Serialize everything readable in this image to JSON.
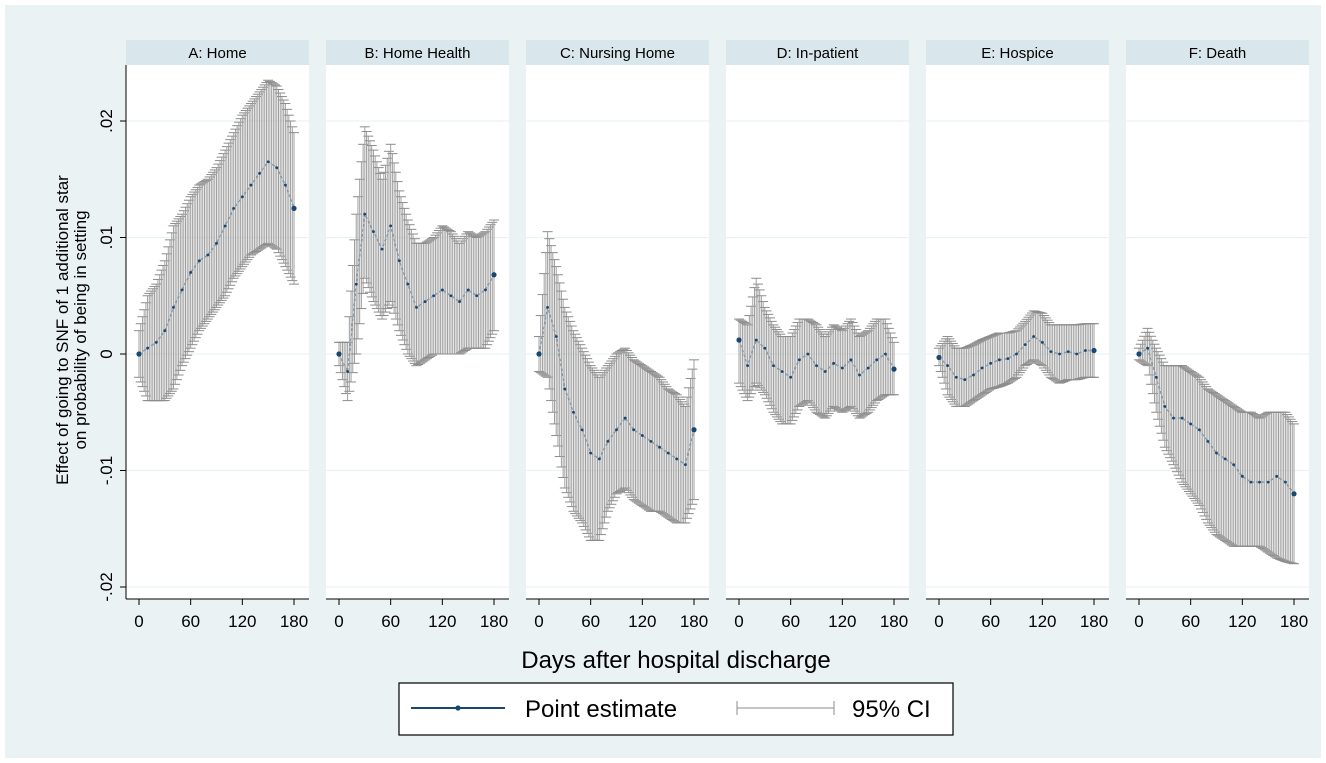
{
  "chart_data": {
    "type": "line",
    "ylabel_line1": "Effect of going to SNF of 1 additional star",
    "ylabel_line2": "on probability of being in setting",
    "xlabel": "Days after hospital discharge",
    "xlim": [
      0,
      180
    ],
    "ylim": [
      -0.02,
      0.02
    ],
    "xticks": [
      0,
      60,
      120,
      180
    ],
    "xtick_labels": [
      "0",
      "60",
      "120",
      "180"
    ],
    "yticks": [
      -0.02,
      -0.01,
      0,
      0.01,
      0.02
    ],
    "ytick_labels": [
      "-.02",
      "-.01",
      "0",
      ".01",
      ".02"
    ],
    "grid": true,
    "legend_position": "bottom",
    "legend": {
      "point": "Point estimate",
      "ci": "95% CI"
    },
    "colors": {
      "point": "#1a476f",
      "ci": "#8c8c8c",
      "band": "#a0a0a0",
      "panel_bg": "#eaf2f3",
      "strip_bg": "#d9e6eb",
      "outer_bg": "#eaf2f3"
    },
    "panels": [
      {
        "title": "A: Home",
        "x": [
          0,
          10,
          20,
          30,
          40,
          50,
          60,
          70,
          80,
          90,
          100,
          110,
          120,
          130,
          140,
          150,
          160,
          170,
          180
        ],
        "estimate": [
          0.0,
          0.0005,
          0.001,
          0.002,
          0.004,
          0.0055,
          0.007,
          0.008,
          0.0085,
          0.0095,
          0.011,
          0.0125,
          0.0135,
          0.0145,
          0.0155,
          0.0165,
          0.016,
          0.0145,
          0.0125
        ],
        "lower": [
          -0.002,
          -0.004,
          -0.004,
          -0.004,
          -0.003,
          -0.001,
          0.0005,
          0.002,
          0.003,
          0.004,
          0.005,
          0.0065,
          0.0075,
          0.0085,
          0.009,
          0.0095,
          0.009,
          0.0075,
          0.006
        ],
        "upper": [
          0.002,
          0.005,
          0.006,
          0.008,
          0.011,
          0.012,
          0.0135,
          0.0145,
          0.015,
          0.016,
          0.0175,
          0.019,
          0.0205,
          0.0215,
          0.0225,
          0.0235,
          0.023,
          0.0215,
          0.019
        ]
      },
      {
        "title": "B: Home Health",
        "x": [
          0,
          10,
          20,
          30,
          40,
          50,
          60,
          70,
          80,
          90,
          100,
          110,
          120,
          130,
          140,
          150,
          160,
          170,
          180
        ],
        "estimate": [
          0.0,
          -0.0015,
          0.006,
          0.012,
          0.0105,
          0.009,
          0.011,
          0.008,
          0.006,
          0.004,
          0.0045,
          0.005,
          0.0055,
          0.005,
          0.0045,
          0.0055,
          0.005,
          0.0055,
          0.0068
        ],
        "lower": [
          -0.001,
          -0.004,
          0.0,
          0.0065,
          0.0045,
          0.003,
          0.0045,
          0.002,
          0.0,
          -0.001,
          -0.0005,
          0.0,
          0.0,
          0.0,
          0.0,
          0.0005,
          0.0005,
          0.0005,
          0.002
        ],
        "upper": [
          0.001,
          0.001,
          0.012,
          0.0195,
          0.0175,
          0.015,
          0.018,
          0.014,
          0.0115,
          0.0095,
          0.0095,
          0.01,
          0.011,
          0.0105,
          0.0095,
          0.0105,
          0.01,
          0.0105,
          0.0115
        ]
      },
      {
        "title": "C: Nursing Home",
        "x": [
          0,
          10,
          20,
          30,
          40,
          50,
          60,
          70,
          80,
          90,
          100,
          110,
          120,
          130,
          140,
          150,
          160,
          170,
          180
        ],
        "estimate": [
          0.0,
          0.004,
          0.0015,
          -0.003,
          -0.005,
          -0.0065,
          -0.0085,
          -0.009,
          -0.0075,
          -0.0065,
          -0.0055,
          -0.0065,
          -0.007,
          -0.0075,
          -0.008,
          -0.0085,
          -0.009,
          -0.0095,
          -0.0065
        ],
        "lower": [
          -0.0015,
          -0.002,
          -0.007,
          -0.0115,
          -0.0135,
          -0.0145,
          -0.016,
          -0.016,
          -0.0135,
          -0.012,
          -0.0115,
          -0.0125,
          -0.013,
          -0.0135,
          -0.0135,
          -0.014,
          -0.0145,
          -0.0145,
          -0.0125
        ],
        "upper": [
          0.0015,
          0.0105,
          0.0075,
          0.004,
          0.002,
          0.0005,
          -0.001,
          -0.002,
          -0.001,
          0.0,
          0.0005,
          -0.0005,
          -0.001,
          -0.0015,
          -0.002,
          -0.003,
          -0.0035,
          -0.0045,
          -0.0005
        ]
      },
      {
        "title": "D: In-patient",
        "x": [
          0,
          10,
          20,
          30,
          40,
          50,
          60,
          70,
          80,
          90,
          100,
          110,
          120,
          130,
          140,
          150,
          160,
          170,
          180
        ],
        "estimate": [
          0.0012,
          -0.001,
          0.0012,
          0.0005,
          -0.001,
          -0.0015,
          -0.002,
          -0.0005,
          0.0,
          -0.001,
          -0.0015,
          -0.0008,
          -0.0012,
          -0.0005,
          -0.0018,
          -0.0012,
          -0.0005,
          0.0,
          -0.0013
        ],
        "lower": [
          -0.0025,
          -0.004,
          -0.0025,
          -0.0035,
          -0.005,
          -0.006,
          -0.006,
          -0.0045,
          -0.004,
          -0.005,
          -0.0055,
          -0.0045,
          -0.005,
          -0.0045,
          -0.0055,
          -0.005,
          -0.004,
          -0.0035,
          -0.0035
        ],
        "upper": [
          0.003,
          0.0025,
          0.0065,
          0.004,
          0.0025,
          0.0015,
          0.0015,
          0.003,
          0.003,
          0.0025,
          0.0015,
          0.0025,
          0.002,
          0.003,
          0.0015,
          0.002,
          0.003,
          0.003,
          0.001
        ]
      },
      {
        "title": "E: Hospice",
        "x": [
          0,
          10,
          20,
          30,
          40,
          50,
          60,
          70,
          80,
          90,
          100,
          110,
          120,
          130,
          140,
          150,
          160,
          170,
          180
        ],
        "estimate": [
          -0.0003,
          -0.001,
          -0.002,
          -0.0022,
          -0.0018,
          -0.0012,
          -0.0008,
          -0.0005,
          -0.0004,
          0.0,
          0.0008,
          0.0015,
          0.001,
          0.0002,
          0.0,
          0.0002,
          0.0,
          0.0003,
          0.0003
        ],
        "lower": [
          -0.001,
          -0.0035,
          -0.0045,
          -0.0045,
          -0.004,
          -0.0035,
          -0.003,
          -0.0028,
          -0.0025,
          -0.002,
          -0.001,
          -0.0005,
          -0.001,
          -0.002,
          -0.0025,
          -0.0022,
          -0.0022,
          -0.002,
          -0.002
        ],
        "upper": [
          0.0005,
          0.0015,
          0.0005,
          0.0005,
          0.0008,
          0.0012,
          0.0015,
          0.0018,
          0.0018,
          0.002,
          0.0028,
          0.0037,
          0.0035,
          0.0025,
          0.0025,
          0.0025,
          0.0025,
          0.0026,
          0.0026
        ]
      },
      {
        "title": "F: Death",
        "x": [
          0,
          10,
          20,
          30,
          40,
          50,
          60,
          70,
          80,
          90,
          100,
          110,
          120,
          130,
          140,
          150,
          160,
          170,
          180
        ],
        "estimate": [
          0.0,
          0.0005,
          -0.002,
          -0.0045,
          -0.0055,
          -0.0055,
          -0.006,
          -0.0065,
          -0.0075,
          -0.0085,
          -0.009,
          -0.0095,
          -0.0105,
          -0.011,
          -0.011,
          -0.011,
          -0.0105,
          -0.011,
          -0.012
        ],
        "lower": [
          -0.0005,
          -0.001,
          -0.005,
          -0.008,
          -0.0095,
          -0.011,
          -0.012,
          -0.013,
          -0.0145,
          -0.0155,
          -0.016,
          -0.0165,
          -0.0165,
          -0.0165,
          -0.0165,
          -0.017,
          -0.0175,
          -0.0178,
          -0.018
        ],
        "upper": [
          0.0005,
          0.0022,
          0.0005,
          -0.001,
          -0.001,
          -0.001,
          -0.0015,
          -0.002,
          -0.003,
          -0.0035,
          -0.004,
          -0.0045,
          -0.005,
          -0.005,
          -0.0055,
          -0.005,
          -0.005,
          -0.005,
          -0.006
        ]
      }
    ]
  }
}
